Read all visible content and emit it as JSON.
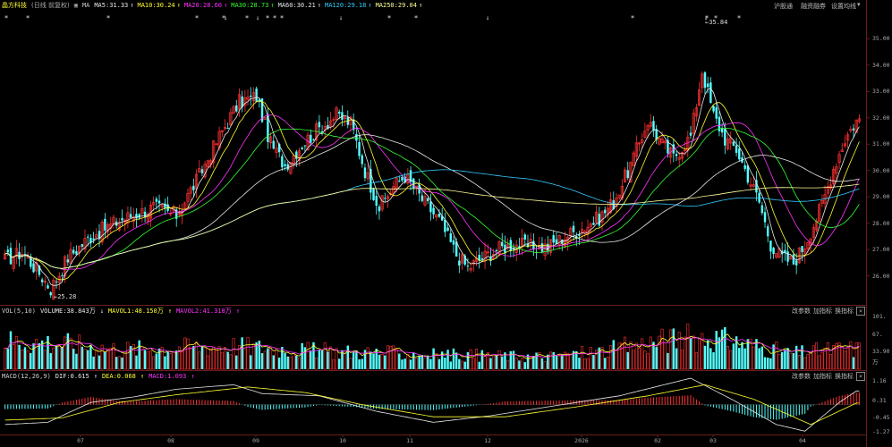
{
  "stock": {
    "name": "晶方科技",
    "period": "(日线 前复权)"
  },
  "ma_header": {
    "label": "MA",
    "items": [
      {
        "text": "MA5:31.33",
        "color": "#e8e8e8"
      },
      {
        "text": "MA10:30.24",
        "color": "#ffff33"
      },
      {
        "text": "MA20:28.60",
        "color": "#ff33ff"
      },
      {
        "text": "MA30:28.73",
        "color": "#33ff33"
      },
      {
        "text": "MA60:30.21",
        "color": "#e8e8e8"
      },
      {
        "text": "MA120:29.18",
        "color": "#33ccff"
      },
      {
        "text": "MA250:29.04",
        "color": "#ffff99"
      }
    ]
  },
  "top_buttons": [
    "沪股通",
    "融资融券",
    "设置均线"
  ],
  "price_ticks": [
    "35.00",
    "34.00",
    "33.00",
    "32.00",
    "31.00",
    "30.00",
    "29.00",
    "28.00",
    "27.00",
    "26.00"
  ],
  "annotations": {
    "low": "←25.28",
    "high": "←35.84"
  },
  "vol_header": {
    "label": "VOL(5,10)",
    "volume": "VOLUME:38.843万",
    "mavol1": "MAVOL1:48.150万",
    "mavol2": "MAVOL2:41.318万"
  },
  "vol_ticks": [
    "101.",
    "67.",
    "33.90",
    "万"
  ],
  "panel_buttons": [
    "改参数",
    "加指标",
    "换指标"
  ],
  "macd_header": {
    "label": "MACD(12,26,9)",
    "dif": "DIF:0.615",
    "dea": "DEA:0.068",
    "macd": "MACD:1.093"
  },
  "macd_ticks": [
    "1.16",
    "0.31",
    "-0.45",
    "-1.27"
  ],
  "months": [
    "07",
    "08",
    "09",
    "10",
    "11",
    "12",
    "2026",
    "02",
    "03",
    "04"
  ],
  "stars": [
    "*",
    "*",
    "*",
    "*",
    "*",
    "*",
    "*",
    "*",
    "*",
    "*",
    "*",
    "*",
    "*",
    "*",
    "*"
  ],
  "colors": {
    "up": "#ff3232",
    "down": "#54ffff",
    "ma5": "#e8e8e8",
    "ma10": "#ffff33",
    "ma20": "#ff33ff",
    "ma30": "#33ff33",
    "ma60": "#e8e8e8",
    "ma120": "#33ccff",
    "ma250": "#ffff99"
  },
  "chart_data": {
    "type": "candlestick",
    "y_range": [
      25.0,
      36.0
    ],
    "close_anchors": [
      [
        0,
        26.6
      ],
      [
        6,
        26.9
      ],
      [
        12,
        26.1
      ],
      [
        16,
        25.5
      ],
      [
        22,
        26.7
      ],
      [
        30,
        27.5
      ],
      [
        40,
        28.1
      ],
      [
        52,
        28.6
      ],
      [
        60,
        28.3
      ],
      [
        68,
        29.8
      ],
      [
        76,
        31.5
      ],
      [
        82,
        32.6
      ],
      [
        88,
        32.8
      ],
      [
        93,
        31.0
      ],
      [
        98,
        30.2
      ],
      [
        104,
        31.0
      ],
      [
        110,
        31.6
      ],
      [
        116,
        32.1
      ],
      [
        121,
        31.8
      ],
      [
        126,
        30.0
      ],
      [
        131,
        28.6
      ],
      [
        136,
        29.4
      ],
      [
        140,
        29.8
      ],
      [
        146,
        28.9
      ],
      [
        152,
        28.1
      ],
      [
        158,
        26.8
      ],
      [
        162,
        26.3
      ],
      [
        166,
        26.6
      ],
      [
        172,
        27.0
      ],
      [
        178,
        27.2
      ],
      [
        184,
        27.1
      ],
      [
        190,
        27.1
      ],
      [
        196,
        27.5
      ],
      [
        202,
        27.8
      ],
      [
        208,
        28.2
      ],
      [
        213,
        28.8
      ],
      [
        219,
        30.2
      ],
      [
        225,
        31.9
      ],
      [
        230,
        31.0
      ],
      [
        234,
        30.5
      ],
      [
        240,
        31.3
      ],
      [
        244,
        33.8
      ],
      [
        248,
        32.1
      ],
      [
        252,
        31.2
      ],
      [
        256,
        30.8
      ],
      [
        260,
        29.8
      ],
      [
        264,
        28.8
      ],
      [
        268,
        27.2
      ],
      [
        272,
        26.7
      ],
      [
        276,
        26.5
      ],
      [
        280,
        27.2
      ],
      [
        286,
        28.7
      ],
      [
        290,
        30.1
      ],
      [
        294,
        31.2
      ],
      [
        298,
        31.9
      ]
    ],
    "volume_range": [
      0,
      101
    ],
    "volume_anchors": [
      [
        0,
        55
      ],
      [
        20,
        50
      ],
      [
        40,
        38
      ],
      [
        60,
        42
      ],
      [
        80,
        45
      ],
      [
        95,
        40
      ],
      [
        110,
        35
      ],
      [
        130,
        32
      ],
      [
        150,
        28
      ],
      [
        170,
        26
      ],
      [
        190,
        24
      ],
      [
        210,
        35
      ],
      [
        230,
        55
      ],
      [
        245,
        62
      ],
      [
        260,
        48
      ],
      [
        275,
        30
      ],
      [
        290,
        38
      ],
      [
        298,
        39
      ]
    ],
    "macd_range": [
      -1.27,
      1.16
    ],
    "dif_anchors": [
      [
        0,
        -0.9
      ],
      [
        15,
        -0.8
      ],
      [
        30,
        0.1
      ],
      [
        45,
        0.35
      ],
      [
        60,
        0.7
      ],
      [
        80,
        0.9
      ],
      [
        90,
        0.5
      ],
      [
        110,
        0.4
      ],
      [
        130,
        -0.3
      ],
      [
        150,
        -0.8
      ],
      [
        170,
        -0.5
      ],
      [
        195,
        0.0
      ],
      [
        215,
        0.4
      ],
      [
        240,
        1.2
      ],
      [
        255,
        0.2
      ],
      [
        270,
        -0.9
      ],
      [
        280,
        -1.2
      ],
      [
        292,
        0.1
      ],
      [
        298,
        0.62
      ]
    ],
    "dea_anchors": [
      [
        0,
        -0.7
      ],
      [
        20,
        -0.6
      ],
      [
        40,
        0.1
      ],
      [
        60,
        0.45
      ],
      [
        85,
        0.8
      ],
      [
        105,
        0.55
      ],
      [
        125,
        0.0
      ],
      [
        150,
        -0.55
      ],
      [
        175,
        -0.55
      ],
      [
        200,
        -0.1
      ],
      [
        225,
        0.4
      ],
      [
        245,
        0.9
      ],
      [
        262,
        0.25
      ],
      [
        282,
        -0.9
      ],
      [
        298,
        0.07
      ]
    ]
  }
}
